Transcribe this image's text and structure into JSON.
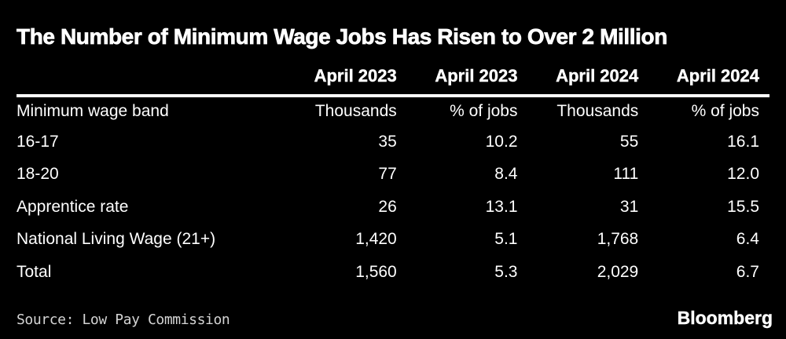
{
  "title": "The Number of Minimum Wage Jobs Has Risen to Over 2 Million",
  "table": {
    "year_headers": [
      "April 2023",
      "April 2023",
      "April 2024",
      "April 2024"
    ],
    "col_headers": [
      "Minimum wage band",
      "Thousands",
      "% of jobs",
      "Thousands",
      "% of jobs"
    ],
    "rows": [
      {
        "label": "16-17",
        "values": [
          "35",
          "10.2",
          "55",
          "16.1"
        ]
      },
      {
        "label": "18-20",
        "values": [
          "77",
          "8.4",
          "111",
          "12.0"
        ]
      },
      {
        "label": "Apprentice rate",
        "values": [
          "26",
          "13.1",
          "31",
          "15.5"
        ]
      },
      {
        "label": "National Living Wage (21+)",
        "values": [
          "1,420",
          "5.1",
          "1,768",
          "6.4"
        ]
      },
      {
        "label": "Total",
        "values": [
          "1,560",
          "5.3",
          "2,029",
          "6.7"
        ]
      }
    ]
  },
  "footer": {
    "source": "Source: Low Pay Commission",
    "brand": "Bloomberg"
  },
  "colors": {
    "background": "#000000",
    "text": "#ffffff",
    "rule": "#ffffff",
    "source_text": "#d4d4d4"
  },
  "chart_data": {
    "type": "table",
    "title": "The Number of Minimum Wage Jobs Has Risen to Over 2 Million",
    "columns": [
      "Minimum wage band",
      "April 2023 Thousands",
      "April 2023 % of jobs",
      "April 2024 Thousands",
      "April 2024 % of jobs"
    ],
    "rows": [
      [
        "16-17",
        35,
        10.2,
        55,
        16.1
      ],
      [
        "18-20",
        77,
        8.4,
        111,
        12.0
      ],
      [
        "Apprentice rate",
        26,
        13.1,
        31,
        15.5
      ],
      [
        "National Living Wage (21+)",
        1420,
        5.1,
        1768,
        6.4
      ],
      [
        "Total",
        1560,
        5.3,
        2029,
        6.7
      ]
    ],
    "source": "Low Pay Commission",
    "legend_position": "none",
    "grid": false
  }
}
